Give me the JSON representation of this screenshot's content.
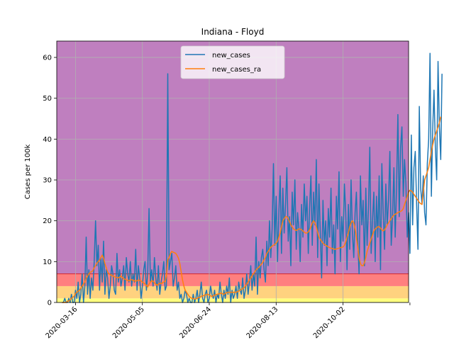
{
  "chart_data": {
    "type": "line",
    "title": "Indiana - Floyd",
    "xlabel": "",
    "ylabel": "Cases per 100k",
    "x_start": "2020-03-06",
    "x_end": "2020-11-17",
    "xlim": [
      "2020-03-02",
      "2020-11-20"
    ],
    "ylim": [
      0,
      64
    ],
    "grid": true,
    "xticks": [
      "2020-03-16",
      "2020-05-05",
      "2020-06-24",
      "2020-08-13",
      "2020-10-02"
    ],
    "xtick_labels": [
      "2020-03-16",
      "2020-05-05",
      "2020-06-24",
      "2020-08-13",
      "2020-10-02"
    ],
    "yticks": [
      0,
      10,
      20,
      30,
      40,
      50,
      60
    ],
    "ytick_labels": [
      "0",
      "10",
      "20",
      "30",
      "40",
      "50",
      "60"
    ],
    "background_bands": [
      {
        "from": 0,
        "to": 1,
        "color": "#ffff7f"
      },
      {
        "from": 1,
        "to": 4,
        "color": "#ffd27f"
      },
      {
        "from": 4,
        "to": 7,
        "color": "#ff7f7f"
      },
      {
        "from": 7,
        "to": 64,
        "color": "#bf7fbf"
      }
    ],
    "legend": {
      "placement": "top-center"
    },
    "series": [
      {
        "name": "new_cases",
        "color": "#1f77b4",
        "values": [
          0,
          0,
          1,
          0,
          0,
          1,
          0,
          2,
          0,
          0,
          3,
          1,
          5,
          0,
          2,
          7,
          0,
          4,
          16,
          2,
          8,
          1,
          6,
          3,
          10,
          20,
          9,
          14,
          3,
          11,
          5,
          15,
          2,
          8,
          6,
          1,
          4,
          9,
          7,
          3,
          2,
          12,
          5,
          8,
          4,
          6,
          9,
          3,
          11,
          7,
          5,
          10,
          4,
          7,
          5,
          13,
          3,
          9,
          6,
          1,
          4,
          8,
          10,
          3,
          7,
          23,
          5,
          8,
          4,
          11,
          6,
          3,
          9,
          2,
          5,
          7,
          10,
          3,
          4,
          56,
          8,
          10,
          12,
          4,
          6,
          9,
          3,
          5,
          1,
          2,
          0,
          1,
          3,
          2,
          0,
          1,
          0,
          0,
          2,
          0,
          1,
          3,
          0,
          2,
          5,
          1,
          0,
          2,
          3,
          0,
          1,
          4,
          2,
          1,
          3,
          0,
          2,
          1,
          5,
          2,
          0,
          3,
          1,
          4,
          2,
          6,
          0,
          3,
          1,
          2,
          4,
          1,
          5,
          3,
          2,
          6,
          1,
          3,
          7,
          2,
          5,
          9,
          3,
          7,
          4,
          16,
          2,
          10,
          6,
          11,
          13,
          8,
          5,
          15,
          9,
          20,
          11,
          18,
          34,
          14,
          26,
          10,
          22,
          31,
          12,
          28,
          17,
          24,
          33,
          15,
          21,
          9,
          27,
          19,
          30,
          13,
          22,
          18,
          10,
          24,
          16,
          29,
          20,
          26,
          12,
          23,
          31,
          14,
          27,
          19,
          35,
          11,
          29,
          17,
          6,
          25,
          14,
          20,
          9,
          23,
          16,
          28,
          12,
          19,
          7,
          26,
          18,
          32,
          10,
          21,
          15,
          29,
          22,
          8,
          24,
          13,
          30,
          17,
          11,
          22,
          27,
          15,
          7,
          31,
          19,
          25,
          9,
          28,
          14,
          23,
          38,
          12,
          20,
          27,
          10,
          26,
          16,
          31,
          8,
          34,
          22,
          13,
          29,
          19,
          25,
          37,
          14,
          21,
          33,
          16,
          28,
          46,
          21,
          38,
          43,
          26,
          35,
          29,
          16,
          22,
          12,
          41,
          19,
          33,
          37,
          24,
          13,
          48,
          28,
          24,
          31,
          22,
          19,
          34,
          40,
          61,
          26,
          42,
          52,
          38,
          30,
          59,
          43,
          35,
          56
        ]
      },
      {
        "name": "new_cases_ra",
        "color": "#ff7f0e",
        "values": [
          0,
          0,
          0,
          0,
          0.3,
          0.4,
          0.6,
          1,
          1.3,
          1.5,
          2.2,
          2.5,
          2.8,
          3,
          3.5,
          4,
          4.5,
          5,
          6,
          6.5,
          7,
          7.4,
          7.5,
          7.8,
          8.5,
          9,
          9.6,
          10,
          10.3,
          11,
          11.6,
          10.8,
          9.5,
          8.5,
          7.5,
          7,
          6.8,
          6.6,
          6.5,
          6.3,
          6.2,
          6.1,
          6,
          6.2,
          6.5,
          6.1,
          5.8,
          5.7,
          5.5,
          5.4,
          5.3,
          5.5,
          5.6,
          5.4,
          5.3,
          5.2,
          5.3,
          5.5,
          5.4,
          5.3,
          5,
          4.8,
          4.5,
          4.2,
          3.8,
          4.5,
          5,
          5.3,
          5.2,
          4.8,
          4.5,
          4.2,
          4.5,
          4.7,
          4.6,
          4.8,
          5,
          5.2,
          6.5,
          10.5,
          11,
          12,
          12.5,
          12.3,
          12.2,
          12,
          11.5,
          10.8,
          9.5,
          7.5,
          5.5,
          4,
          3,
          2.5,
          2,
          1.5,
          1.2,
          1,
          1,
          0.8,
          0.9,
          1,
          1.2,
          1.3,
          1.5,
          1.6,
          1.7,
          1.8,
          1.9,
          2,
          1.8,
          1.6,
          1.5,
          1.6,
          1.8,
          1.9,
          2,
          2.1,
          2.2,
          2.3,
          2.1,
          2,
          2.2,
          2.4,
          2.5,
          2.5,
          2.5,
          2.5,
          2.5,
          2.5,
          2.5,
          2.6,
          2.8,
          3,
          3.2,
          3.4,
          3.6,
          4,
          4.5,
          5,
          5.5,
          6,
          6.5,
          7,
          7.5,
          8,
          8.3,
          8.6,
          9,
          9.4,
          9.8,
          10.5,
          11,
          12,
          12.5,
          13,
          13.5,
          13.8,
          14,
          14.2,
          14.5,
          15,
          16,
          17,
          18.5,
          20,
          20.5,
          21,
          21,
          20.5,
          19.8,
          19,
          18.5,
          18,
          17.8,
          17.6,
          17.8,
          18,
          18,
          17.8,
          17.5,
          17.2,
          17,
          17,
          17.3,
          17.8,
          18.5,
          19.5,
          20,
          19.5,
          18.5,
          17.2,
          16,
          15.4,
          15,
          14.5,
          14.2,
          14,
          13.8,
          13.6,
          13.4,
          13.3,
          13.2,
          13.1,
          13,
          13.1,
          13.2,
          13.3,
          13.4,
          13.5,
          13.6,
          14,
          14.8,
          16,
          17,
          18.5,
          19.5,
          20,
          19.5,
          18,
          16,
          13.5,
          11,
          9.5,
          9,
          9,
          9.8,
          11,
          12.5,
          13.5,
          14.5,
          15.5,
          16.5,
          17.5,
          18,
          18.3,
          18.5,
          18.6,
          18.2,
          17.8,
          17.5,
          17.8,
          18.3,
          19,
          19.5,
          20,
          20.5,
          21,
          21.4,
          21.6,
          21.8,
          22,
          22.2,
          22.3,
          22.5,
          23,
          24,
          25,
          26,
          27,
          27.5,
          27.3,
          27,
          26.5,
          26,
          25.5,
          25,
          24.5,
          24.2,
          24,
          27,
          30,
          31,
          32,
          33,
          35,
          37,
          38.5,
          40,
          41,
          42,
          43,
          44,
          45.5
        ]
      }
    ]
  }
}
